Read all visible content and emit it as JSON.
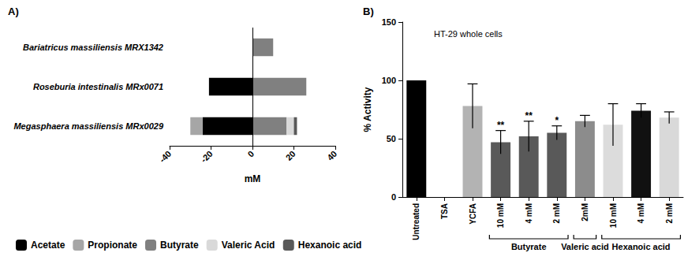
{
  "chart_data": [
    {
      "type": "bar",
      "title": "A)",
      "orientation": "horizontal",
      "stacked": true,
      "categories": [
        "Bariatricus massiliensis MRX1342",
        "Roseburia intestinalis MRx0071",
        "Megasphaera massiliensis MRx0029"
      ],
      "series": [
        {
          "name": "Acetate",
          "color": "#000000",
          "values": [
            null,
            -21,
            -24
          ]
        },
        {
          "name": "Propionate",
          "color": "#a6a6a6",
          "values": [
            null,
            null,
            -6
          ]
        },
        {
          "name": "Butyrate",
          "color": "#808080",
          "values": [
            10,
            26,
            16.5
          ]
        },
        {
          "name": "Valeric Acid",
          "color": "#d9d9d9",
          "values": [
            null,
            null,
            3.5
          ]
        },
        {
          "name": "Hexanoic acid",
          "color": "#595959",
          "values": [
            null,
            null,
            1.5
          ]
        }
      ],
      "x_label": "mM",
      "xlim": [
        -40,
        40
      ],
      "xticks": [
        -40,
        -20,
        0,
        20,
        40
      ],
      "grid": false,
      "legend": "bottom"
    },
    {
      "type": "bar",
      "title": "B)",
      "subtitle": "HT-29 whole cells",
      "categories": [
        "Untreated",
        "TSA",
        "YCFA",
        "10 mM",
        "4 mM",
        "2 mM",
        "2mM",
        "10 mM",
        "4 mM",
        "2 mM"
      ],
      "values": [
        100,
        0,
        78,
        47,
        52,
        55,
        65,
        62,
        74,
        68
      ],
      "errors": [
        null,
        null,
        19,
        10,
        13,
        6,
        5,
        18,
        6,
        5
      ],
      "significance": [
        null,
        null,
        null,
        "**",
        "**",
        "*",
        null,
        null,
        null,
        null
      ],
      "category_groups": [
        null,
        null,
        null,
        "Butyrate",
        "Butyrate",
        "Butyrate",
        "Valeric acid",
        "Hexanoic acid",
        "Hexanoic acid",
        "Hexanoic acid"
      ],
      "colors": [
        "#000000",
        "#808080",
        "#b3b3b3",
        "#595959",
        "#595959",
        "#595959",
        "#8c8c8c",
        "#dcdcdc",
        "#111111",
        "#d9d9d9"
      ],
      "y_label": "% Activity",
      "ylim": [
        0,
        150
      ],
      "yticks": [
        0,
        50,
        100,
        150
      ],
      "grid": false
    }
  ]
}
